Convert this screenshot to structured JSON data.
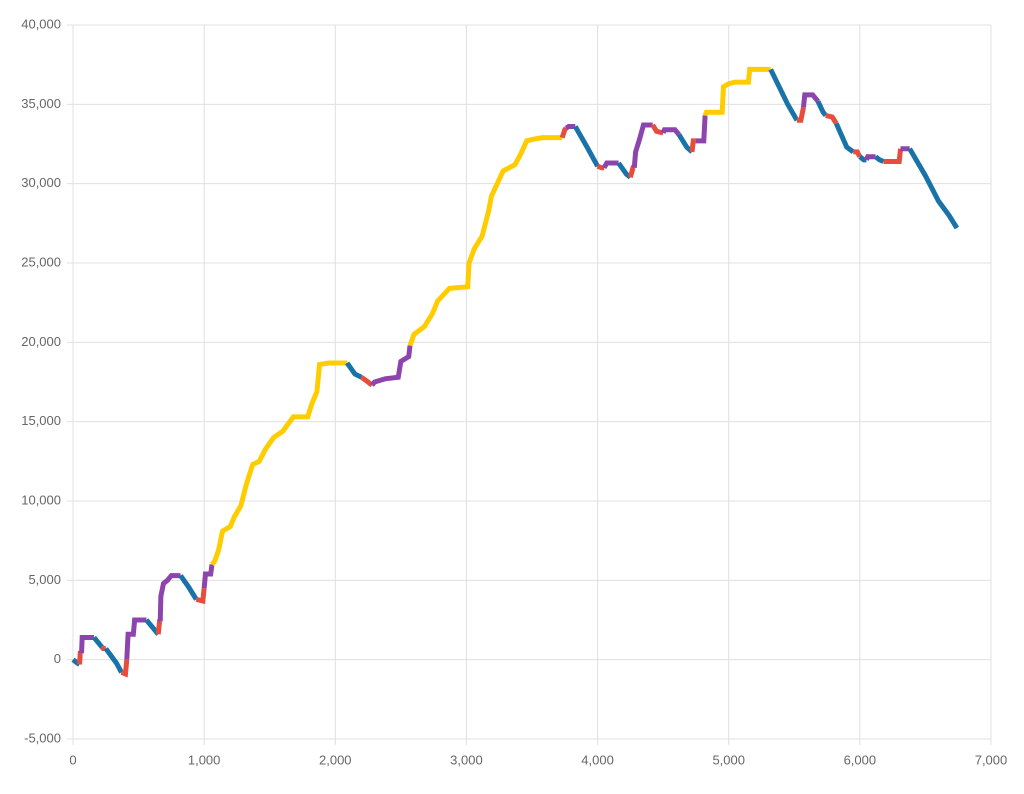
{
  "chart_data": {
    "type": "line",
    "xlim": [
      0,
      7000
    ],
    "xticks": [
      0,
      {
        "value": 1000,
        "label": "1,000"
      },
      {
        "value": 2000,
        "label": "2,000"
      },
      {
        "value": 3000,
        "label": "3,000"
      },
      {
        "value": 4000,
        "label": "4,000"
      },
      {
        "value": 5000,
        "label": "5,000"
      },
      {
        "value": 6000,
        "label": "6,000"
      },
      {
        "value": 7000,
        "label": "7,000"
      }
    ],
    "ylim": [
      -5000,
      40000
    ],
    "yticks": [
      {
        "value": -5000,
        "label": "-5,000"
      },
      0,
      {
        "value": 5000,
        "label": "5,000"
      },
      {
        "value": 10000,
        "label": "10,000"
      },
      {
        "value": 15000,
        "label": "15,000"
      },
      {
        "value": 20000,
        "label": "20,000"
      },
      {
        "value": 25000,
        "label": "25,000"
      },
      {
        "value": 30000,
        "label": "30,000"
      },
      {
        "value": 35000,
        "label": "35,000"
      },
      {
        "value": 40000,
        "label": "40,000"
      }
    ],
    "grid": true,
    "series": [
      {
        "color": "#1a73a8",
        "x": [
          0,
          30,
          50
        ],
        "values": [
          0,
          -200,
          -300
        ]
      },
      {
        "color": "#e74c3c",
        "x": [
          50,
          55,
          65
        ],
        "values": [
          -300,
          400,
          400
        ]
      },
      {
        "color": "#8e44ad",
        "x": [
          65,
          70,
          160
        ],
        "values": [
          400,
          1400,
          1400
        ]
      },
      {
        "color": "#1a73a8",
        "x": [
          160,
          200,
          220
        ],
        "values": [
          1400,
          1000,
          800
        ]
      },
      {
        "color": "#e74c3c",
        "x": [
          220,
          230,
          250
        ],
        "values": [
          800,
          700,
          700
        ]
      },
      {
        "color": "#1a73a8",
        "x": [
          250,
          330,
          370
        ],
        "values": [
          700,
          -200,
          -800
        ]
      },
      {
        "color": "#e74c3c",
        "x": [
          370,
          400,
          410
        ],
        "values": [
          -800,
          -900,
          0
        ]
      },
      {
        "color": "#8e44ad",
        "x": [
          410,
          420,
          460,
          470,
          560
        ],
        "values": [
          0,
          1600,
          1600,
          2500,
          2500
        ]
      },
      {
        "color": "#1a73a8",
        "x": [
          560,
          620,
          650
        ],
        "values": [
          2500,
          1900,
          1600
        ]
      },
      {
        "color": "#e74c3c",
        "x": [
          650,
          660,
          665
        ],
        "values": [
          1600,
          2400,
          2400
        ]
      },
      {
        "color": "#8e44ad",
        "x": [
          665,
          670,
          690,
          720,
          750,
          820
        ],
        "values": [
          2400,
          4000,
          4800,
          5000,
          5300,
          5300
        ]
      },
      {
        "color": "#1a73a8",
        "x": [
          820,
          880,
          940
        ],
        "values": [
          5300,
          4600,
          3800
        ]
      },
      {
        "color": "#e74c3c",
        "x": [
          940,
          990,
          1000
        ],
        "values": [
          3800,
          3700,
          4500
        ]
      },
      {
        "color": "#8e44ad",
        "x": [
          1000,
          1010,
          1050,
          1060
        ],
        "values": [
          4500,
          5400,
          5400,
          6000
        ]
      },
      {
        "color": "#ffcc00",
        "x": [
          1060,
          1080,
          1110,
          1140,
          1200,
          1230,
          1280,
          1320,
          1370,
          1420,
          1470,
          1530,
          1600,
          1680,
          1790,
          1820,
          1860,
          1880,
          1950,
          2090
        ],
        "values": [
          6000,
          6200,
          6900,
          8100,
          8400,
          9000,
          9700,
          11000,
          12300,
          12500,
          13300,
          14000,
          14400,
          15300,
          15300,
          16100,
          16900,
          18600,
          18700,
          18700
        ]
      },
      {
        "color": "#1a73a8",
        "x": [
          2090,
          2150,
          2200
        ],
        "values": [
          18700,
          18000,
          17800
        ]
      },
      {
        "color": "#e74c3c",
        "x": [
          2200,
          2250,
          2280
        ],
        "values": [
          17800,
          17500,
          17300
        ]
      },
      {
        "color": "#8e44ad",
        "x": [
          2280,
          2300,
          2380,
          2480,
          2500,
          2560,
          2570
        ],
        "values": [
          17300,
          17500,
          17700,
          17800,
          18800,
          19100,
          19800
        ]
      },
      {
        "color": "#ffcc00",
        "x": [
          2570,
          2600,
          2680,
          2740,
          2780,
          2870,
          3010,
          3020,
          3060,
          3120,
          3170,
          3190,
          3280,
          3370,
          3410,
          3460,
          3510,
          3580,
          3730
        ],
        "values": [
          19800,
          20500,
          21000,
          21800,
          22600,
          23400,
          23500,
          25000,
          25900,
          26700,
          28300,
          29200,
          30800,
          31200,
          31800,
          32700,
          32800,
          32900,
          32900
        ]
      },
      {
        "color": "#e74c3c",
        "x": [
          3730,
          3750,
          3760
        ],
        "values": [
          32900,
          33400,
          33500
        ]
      },
      {
        "color": "#8e44ad",
        "x": [
          3760,
          3780,
          3830
        ],
        "values": [
          33500,
          33600,
          33600
        ]
      },
      {
        "color": "#1a73a8",
        "x": [
          3830,
          3920,
          4000
        ],
        "values": [
          33600,
          32300,
          31100
        ]
      },
      {
        "color": "#e74c3c",
        "x": [
          4000,
          4030,
          4050
        ],
        "values": [
          31100,
          31000,
          31000
        ]
      },
      {
        "color": "#8e44ad",
        "x": [
          4050,
          4070,
          4160
        ],
        "values": [
          31000,
          31300,
          31300
        ]
      },
      {
        "color": "#1a73a8",
        "x": [
          4160,
          4220,
          4250
        ],
        "values": [
          31300,
          30600,
          30400
        ]
      },
      {
        "color": "#e74c3c",
        "x": [
          4250,
          4270,
          4280
        ],
        "values": [
          30400,
          31000,
          31000
        ]
      },
      {
        "color": "#8e44ad",
        "x": [
          4280,
          4290,
          4320,
          4350,
          4420
        ],
        "values": [
          31000,
          32000,
          32800,
          33700,
          33700
        ]
      },
      {
        "color": "#e74c3c",
        "x": [
          4420,
          4450,
          4500
        ],
        "values": [
          33700,
          33300,
          33200
        ]
      },
      {
        "color": "#8e44ad",
        "x": [
          4500,
          4510,
          4590,
          4620
        ],
        "values": [
          33200,
          33400,
          33400,
          33100
        ]
      },
      {
        "color": "#1a73a8",
        "x": [
          4620,
          4680,
          4720
        ],
        "values": [
          33100,
          32300,
          32000
        ]
      },
      {
        "color": "#e74c3c",
        "x": [
          4720,
          4730,
          4750
        ],
        "values": [
          32000,
          32700,
          32700
        ]
      },
      {
        "color": "#8e44ad",
        "x": [
          4750,
          4810,
          4820
        ],
        "values": [
          32700,
          32700,
          34300
        ]
      },
      {
        "color": "#ffcc00",
        "x": [
          4820,
          4830,
          4950,
          4960,
          5000,
          5050,
          5150,
          5160,
          5320
        ],
        "values": [
          34300,
          34500,
          34500,
          36100,
          36300,
          36400,
          36400,
          37200,
          37200
        ]
      },
      {
        "color": "#1a73a8",
        "x": [
          5320,
          5450,
          5520
        ],
        "values": [
          37200,
          35000,
          34000
        ]
      },
      {
        "color": "#e74c3c",
        "x": [
          5520,
          5550,
          5570
        ],
        "values": [
          34000,
          34000,
          34800
        ]
      },
      {
        "color": "#8e44ad",
        "x": [
          5570,
          5580,
          5640,
          5680
        ],
        "values": [
          34800,
          35600,
          35600,
          35200
        ]
      },
      {
        "color": "#1a73a8",
        "x": [
          5680,
          5720,
          5740
        ],
        "values": [
          35200,
          34500,
          34300
        ]
      },
      {
        "color": "#e74c3c",
        "x": [
          5740,
          5790,
          5820
        ],
        "values": [
          34300,
          34200,
          33800
        ]
      },
      {
        "color": "#1a73a8",
        "x": [
          5820,
          5900,
          5950
        ],
        "values": [
          33800,
          32300,
          32000
        ]
      },
      {
        "color": "#e74c3c",
        "x": [
          5950,
          5980,
          6000
        ],
        "values": [
          32000,
          32000,
          31700
        ]
      },
      {
        "color": "#1a73a8",
        "x": [
          6000,
          6030,
          6050
        ],
        "values": [
          31700,
          31500,
          31500
        ]
      },
      {
        "color": "#8e44ad",
        "x": [
          6050,
          6060,
          6120
        ],
        "values": [
          31500,
          31700,
          31700
        ]
      },
      {
        "color": "#1a73a8",
        "x": [
          6120,
          6150,
          6180
        ],
        "values": [
          31700,
          31500,
          31400
        ]
      },
      {
        "color": "#e74c3c",
        "x": [
          6180,
          6220,
          6300,
          6310
        ],
        "values": [
          31400,
          31400,
          31400,
          32200
        ]
      },
      {
        "color": "#8e44ad",
        "x": [
          6310,
          6330,
          6380
        ],
        "values": [
          32200,
          32200,
          32200
        ]
      },
      {
        "color": "#1a73a8",
        "x": [
          6380,
          6500,
          6600,
          6680,
          6740
        ],
        "values": [
          32200,
          30500,
          28900,
          28000,
          27200
        ]
      }
    ]
  }
}
